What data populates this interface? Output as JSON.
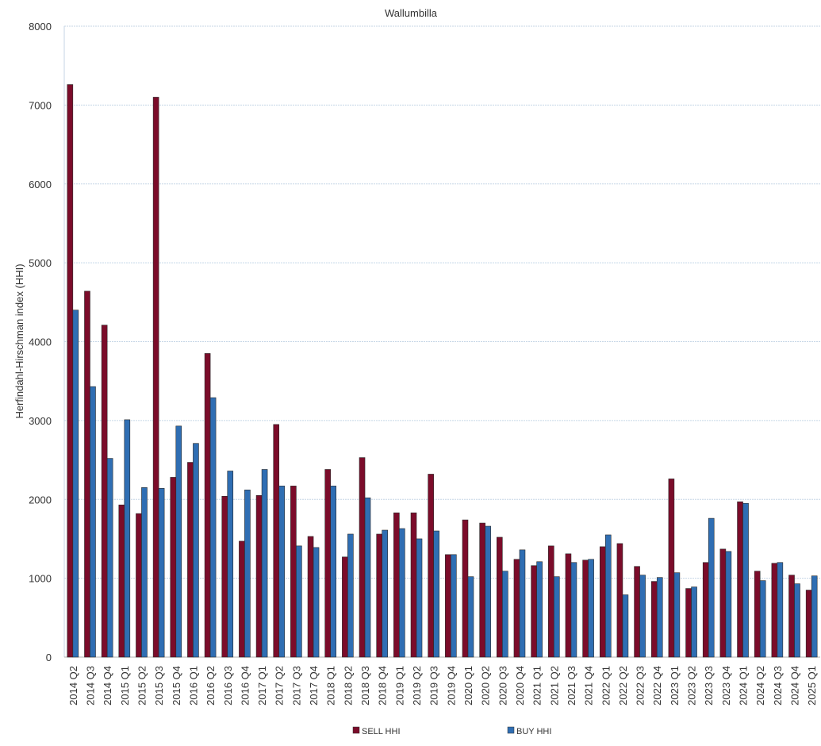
{
  "chart_data": {
    "type": "bar",
    "title": "Wallumbilla",
    "xlabel": "",
    "ylabel": "Herfindahl-Hirschman index (HHI)",
    "ylim": [
      0,
      8000
    ],
    "yticks": [
      0,
      1000,
      2000,
      3000,
      4000,
      5000,
      6000,
      7000,
      8000
    ],
    "grid": true,
    "legend_position": "bottom",
    "categories": [
      "2014 Q2",
      "2014 Q3",
      "2014 Q4",
      "2015 Q1",
      "2015 Q2",
      "2015 Q3",
      "2015 Q4",
      "2016 Q1",
      "2016 Q2",
      "2016 Q3",
      "2016 Q4",
      "2017 Q1",
      "2017 Q2",
      "2017 Q3",
      "2017 Q4",
      "2018 Q1",
      "2018 Q2",
      "2018 Q3",
      "2018 Q4",
      "2019 Q1",
      "2019 Q2",
      "2019 Q3",
      "2019 Q4",
      "2020 Q1",
      "2020 Q2",
      "2020 Q3",
      "2020 Q4",
      "2021 Q1",
      "2021 Q2",
      "2021 Q3",
      "2021 Q4",
      "2022 Q1",
      "2022 Q2",
      "2022 Q3",
      "2022 Q4",
      "2023 Q1",
      "2023 Q2",
      "2023 Q3",
      "2023 Q4",
      "2024 Q1",
      "2024 Q2",
      "2024 Q3",
      "2024 Q4",
      "2025 Q1"
    ],
    "series": [
      {
        "name": "SELL HHI",
        "color": "#7b0c2a",
        "values": [
          7260,
          4640,
          4210,
          1930,
          1820,
          7100,
          2280,
          2470,
          3850,
          2040,
          1470,
          2050,
          2950,
          2170,
          1530,
          2380,
          1270,
          2530,
          1560,
          1830,
          1830,
          2320,
          1300,
          1740,
          1700,
          1520,
          1240,
          1160,
          1410,
          1310,
          1230,
          1400,
          1440,
          1150,
          960,
          2260,
          870,
          1200,
          1370,
          1970,
          1090,
          1190,
          1040,
          850
        ]
      },
      {
        "name": "BUY HHI",
        "color": "#2f6eb3",
        "values": [
          4400,
          3430,
          2520,
          3010,
          2150,
          2140,
          2930,
          2710,
          3290,
          2360,
          2120,
          2380,
          2170,
          1410,
          1390,
          2170,
          1560,
          2020,
          1610,
          1630,
          1500,
          1600,
          1300,
          1020,
          1660,
          1090,
          1360,
          1210,
          1020,
          1200,
          1240,
          1550,
          790,
          1040,
          1010,
          1070,
          890,
          1760,
          1340,
          1950,
          970,
          1200,
          930,
          1030
        ]
      }
    ]
  }
}
